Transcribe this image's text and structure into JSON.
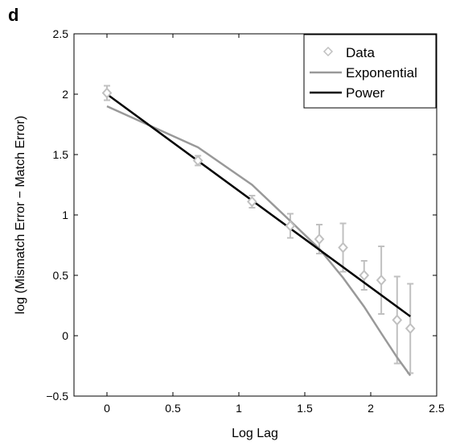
{
  "panel_label": "d",
  "chart_data": {
    "type": "line",
    "xlabel": "Log Lag",
    "ylabel": "log (Mismatch Error − Match Error)",
    "xlim": [
      -0.25,
      2.5
    ],
    "ylim": [
      -0.5,
      2.5
    ],
    "xticks": [
      0,
      0.5,
      1,
      1.5,
      2,
      2.5
    ],
    "xtick_labels": [
      "0",
      "0.5",
      "1",
      "1.5",
      "2",
      "2.5"
    ],
    "yticks": [
      -0.5,
      0,
      0.5,
      1,
      1.5,
      2,
      2.5
    ],
    "ytick_labels": [
      "−0.5",
      "0",
      "0.5",
      "1",
      "1.5",
      "2",
      "2.5"
    ],
    "grid": false,
    "legend_position": "top-right",
    "legend": [
      "Data",
      "Exponential",
      "Power"
    ],
    "data_points": {
      "name": "Data",
      "color": "#c0c0c0",
      "marker": "diamond",
      "x": [
        0,
        0.69,
        1.1,
        1.39,
        1.61,
        1.79,
        1.95,
        2.08,
        2.2,
        2.3
      ],
      "y": [
        2.01,
        1.45,
        1.11,
        0.91,
        0.8,
        0.73,
        0.5,
        0.46,
        0.13,
        0.06
      ],
      "err": [
        0.06,
        0.04,
        0.05,
        0.1,
        0.12,
        0.2,
        0.12,
        0.28,
        0.36,
        0.37
      ]
    },
    "series": [
      {
        "name": "Exponential",
        "color": "#999999",
        "x": [
          0,
          0.69,
          1.1,
          1.39,
          1.61,
          1.79,
          1.95,
          2.08,
          2.2,
          2.3
        ],
        "y": [
          1.9,
          1.56,
          1.25,
          0.95,
          0.72,
          0.48,
          0.24,
          0.02,
          -0.18,
          -0.33
        ]
      },
      {
        "name": "Power",
        "color": "#000000",
        "x": [
          0,
          2.3
        ],
        "y": [
          2.0,
          0.16
        ]
      }
    ]
  }
}
